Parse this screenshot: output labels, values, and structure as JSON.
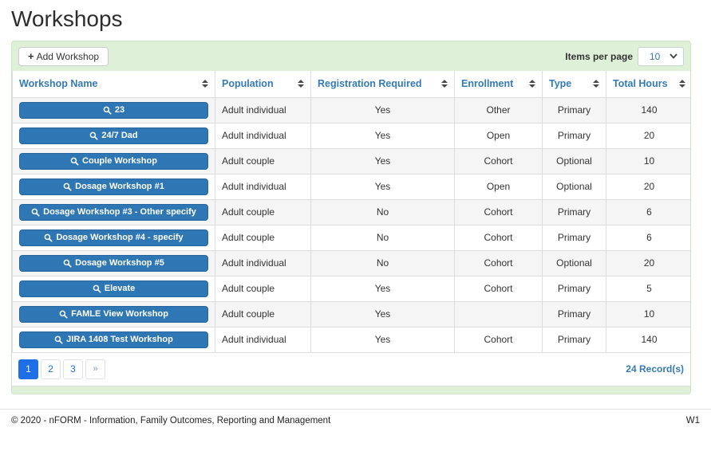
{
  "page": {
    "title": "Workshops"
  },
  "toolbar": {
    "add_button_label": "Add Workshop",
    "add_button_icon": "plus-icon",
    "items_per_page_label": "Items per page",
    "items_per_page_value": "10"
  },
  "table": {
    "columns": [
      {
        "key": "name",
        "label": "Workshop Name"
      },
      {
        "key": "population",
        "label": "Population"
      },
      {
        "key": "registration",
        "label": "Registration Required"
      },
      {
        "key": "enrollment",
        "label": "Enrollment"
      },
      {
        "key": "type",
        "label": "Type"
      },
      {
        "key": "hours",
        "label": "Total Hours"
      }
    ],
    "row_button_icon": "search-icon",
    "rows": [
      {
        "name": "23",
        "population": "Adult individual",
        "registration": "Yes",
        "enrollment": "Other",
        "type": "Primary",
        "hours": "140"
      },
      {
        "name": "24/7 Dad",
        "population": "Adult individual",
        "registration": "Yes",
        "enrollment": "Open",
        "type": "Primary",
        "hours": "20"
      },
      {
        "name": "Couple Workshop",
        "population": "Adult couple",
        "registration": "Yes",
        "enrollment": "Cohort",
        "type": "Optional",
        "hours": "10"
      },
      {
        "name": "Dosage Workshop #1",
        "population": "Adult individual",
        "registration": "Yes",
        "enrollment": "Open",
        "type": "Optional",
        "hours": "20"
      },
      {
        "name": "Dosage Workshop #3 - Other specify",
        "population": "Adult couple",
        "registration": "No",
        "enrollment": "Cohort",
        "type": "Primary",
        "hours": "6"
      },
      {
        "name": "Dosage Workshop #4 - specify",
        "population": "Adult couple",
        "registration": "No",
        "enrollment": "Cohort",
        "type": "Primary",
        "hours": "6"
      },
      {
        "name": "Dosage Workshop #5",
        "population": "Adult individual",
        "registration": "No",
        "enrollment": "Cohort",
        "type": "Optional",
        "hours": "20"
      },
      {
        "name": "Elevate",
        "population": "Adult couple",
        "registration": "Yes",
        "enrollment": "Cohort",
        "type": "Primary",
        "hours": "5"
      },
      {
        "name": "FAMLE View Workshop",
        "population": "Adult couple",
        "registration": "Yes",
        "enrollment": "",
        "type": "Primary",
        "hours": "10"
      },
      {
        "name": "JIRA 1408 Test Workshop",
        "population": "Adult individual",
        "registration": "Yes",
        "enrollment": "Cohort",
        "type": "Primary",
        "hours": "140"
      }
    ]
  },
  "pagination": {
    "pages": [
      "1",
      "2",
      "3"
    ],
    "active_page": "1",
    "next_label": "»",
    "records": "24 Record(s)"
  },
  "footer": {
    "copyright": "© 2020 - nFORM - Information, Family Outcomes, Reporting and Management",
    "version": "W1"
  },
  "colors": {
    "panel_green": "#dff0d8",
    "header_blue": "#337ab7",
    "workshop_button_blue": "#2e76b4",
    "active_page_blue": "#1e6fe6",
    "stripe_gray": "#f5f5f5"
  }
}
